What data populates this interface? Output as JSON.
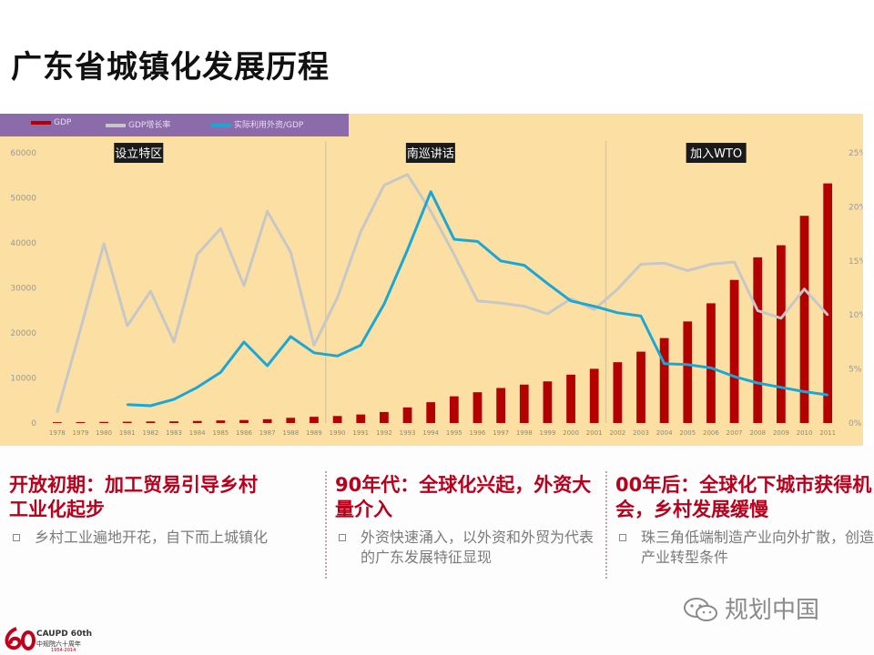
{
  "slide": {
    "title": "广东省城镇化发展历程",
    "watermark": "规划中国",
    "logo_text": "CAUPD 60th",
    "logo_sub": "中规院六十周年",
    "logo_years": "1954-2014"
  },
  "columns": [
    {
      "heading": "开放初期：加工贸易引导乡村工业化起步",
      "bullet": "乡村工业遍地开花，自下而上城镇化"
    },
    {
      "heading": "90年代：全球化兴起，外资大量介入",
      "bullet": "外资快速涌入，以外资和外贸为代表的广东发展特征显现"
    },
    {
      "heading": "00年后：全球化下城市获得机会，乡村发展缓慢",
      "bullet": "珠三角低端制造产业向外扩散，创造产业转型条件"
    }
  ],
  "chart_data": {
    "type": "bar",
    "categories": [
      "1978",
      "1979",
      "1980",
      "1981",
      "1982",
      "1983",
      "1984",
      "1985",
      "1986",
      "1987",
      "1988",
      "1989",
      "1990",
      "1991",
      "1992",
      "1993",
      "1994",
      "1995",
      "1996",
      "1997",
      "1998",
      "1999",
      "2000",
      "2001",
      "2002",
      "2003",
      "2004",
      "2005",
      "2006",
      "2007",
      "2008",
      "2009",
      "2010",
      "2011"
    ],
    "y_left": {
      "ticks": [
        "0",
        "10000",
        "20000",
        "30000",
        "40000",
        "50000",
        "60000"
      ],
      "ylim": [
        0,
        60000
      ]
    },
    "y_right": {
      "ticks": [
        "0%",
        "5%",
        "10%",
        "15%",
        "20%",
        "25%"
      ],
      "ylim": [
        0,
        25
      ]
    },
    "series": [
      {
        "name": "GDP",
        "type": "bar",
        "axis": "left",
        "color": "#b30000",
        "values": [
          186,
          209,
          249,
          290,
          340,
          368,
          458,
          577,
          667,
          847,
          1155,
          1381,
          1559,
          1893,
          2448,
          3469,
          4619,
          5933,
          6835,
          7774,
          8531,
          9250,
          10741,
          12039,
          13502,
          15845,
          18865,
          22557,
          26588,
          31777,
          36797,
          39483,
          46013,
          53210
        ]
      },
      {
        "name": "GDP增长率",
        "type": "line",
        "axis": "right",
        "color": "#c7c7c7",
        "values": [
          null,
          null,
          null,
          null,
          null,
          null,
          null,
          null,
          null,
          null,
          null,
          null,
          null,
          null,
          null,
          null,
          null,
          null,
          null,
          null,
          null,
          null,
          null,
          null,
          null,
          null,
          null,
          null,
          null,
          null,
          null,
          null,
          null,
          null
        ]
      },
      {
        "name": "实际利用外资/GDP",
        "type": "line",
        "axis": "right",
        "color": "#1aa7d6",
        "values": [
          null,
          null,
          null,
          1.7,
          1.6,
          2.2,
          3.3,
          4.7,
          7.5,
          5.3,
          8.0,
          6.5,
          6.2,
          7.2,
          11.0,
          16.0,
          21.4,
          17.0,
          16.8,
          15.0,
          14.6,
          12.9,
          11.3,
          10.8,
          10.2,
          9.9,
          5.5,
          5.4,
          5.1,
          4.3,
          3.7,
          3.3,
          2.9,
          2.6
        ]
      }
    ],
    "growth_rate_values": [
      1.0,
      8.7,
      16.6,
      9.0,
      12.2,
      7.5,
      15.6,
      18.0,
      12.7,
      19.6,
      15.8,
      7.2,
      11.6,
      17.7,
      22.0,
      23.0,
      19.6,
      15.6,
      11.3,
      11.1,
      10.8,
      10.1,
      11.5,
      10.5,
      12.4,
      14.7,
      14.8,
      14.1,
      14.7,
      14.9,
      10.4,
      9.7,
      12.4,
      10.0
    ],
    "annotations": [
      "设立特区",
      "南巡讲话",
      "加入WTO"
    ]
  }
}
